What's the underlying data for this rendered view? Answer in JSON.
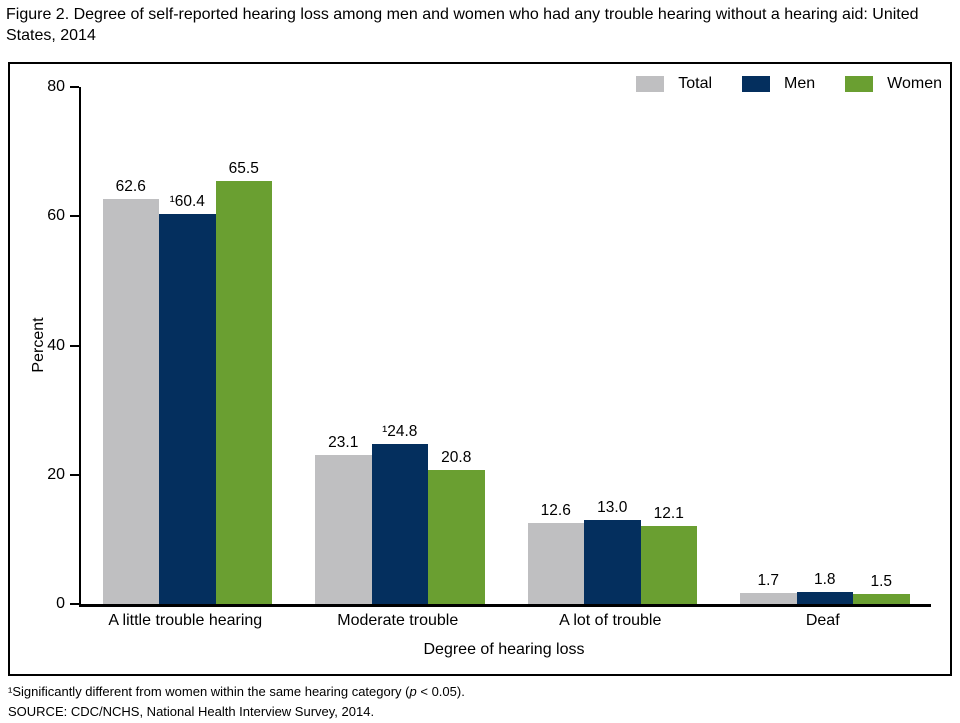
{
  "title": "Figure 2. Degree of self-reported hearing loss among men and women who had any trouble hearing without a hearing aid: United States, 2014",
  "footnote": {
    "pre": "¹Significantly different from women within the same hearing category (",
    "italic_var": "p",
    "post": " < 0.05)."
  },
  "source": "SOURCE: CDC/NCHS, National Health Interview Survey, 2014.",
  "chart_data": {
    "type": "bar",
    "title": "Degree of self-reported hearing loss among men and women who had any trouble hearing without a hearing aid: United States, 2014",
    "categories": [
      "A little trouble hearing",
      "Moderate trouble",
      "A lot of trouble",
      "Deaf"
    ],
    "series": [
      {
        "name": "Total",
        "color": "#bfbfc1",
        "values": [
          62.6,
          23.1,
          12.6,
          1.7
        ],
        "labels": [
          "62.6",
          "23.1",
          "12.6",
          "1.7"
        ]
      },
      {
        "name": "Men",
        "color": "#042f5e",
        "values": [
          60.4,
          24.8,
          13.0,
          1.8
        ],
        "labels": [
          "¹60.4",
          "¹24.8",
          "13.0",
          "1.8"
        ]
      },
      {
        "name": "Women",
        "color": "#6a9f31",
        "values": [
          65.5,
          20.8,
          12.1,
          1.5
        ],
        "labels": [
          "65.5",
          "20.8",
          "12.1",
          "1.5"
        ]
      }
    ],
    "xlabel": "Degree of hearing loss",
    "ylabel": "Percent",
    "ylim": [
      0,
      80
    ],
    "yticks": [
      0,
      20,
      40,
      60,
      80
    ],
    "legend_position": "top-right",
    "grid": false
  }
}
